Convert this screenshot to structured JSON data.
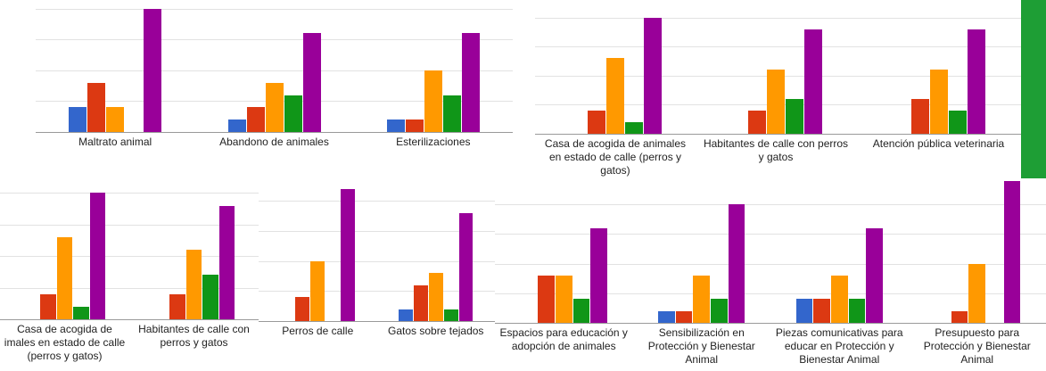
{
  "chart_data": [
    {
      "type": "bar",
      "categories": [
        "Maltrato animal",
        "Abandono de animales",
        "Esterilizaciones"
      ],
      "series": [
        {
          "color": "#3366cc",
          "values": [
            2,
            1,
            1
          ]
        },
        {
          "color": "#dc3912",
          "values": [
            4,
            2,
            1
          ]
        },
        {
          "color": "#ff9900",
          "values": [
            2,
            4,
            5
          ]
        },
        {
          "color": "#109618",
          "values": [
            0,
            3,
            3
          ]
        },
        {
          "color": "#990099",
          "values": [
            10,
            8,
            8
          ]
        }
      ],
      "ylim": [
        0,
        10.7
      ],
      "yticks": [
        0,
        2.5,
        5,
        7.5,
        10
      ],
      "grid": true
    },
    {
      "type": "bar",
      "categories": [
        "Casa de acogida de animales en estado de calle (perros y gatos)",
        "Habitantes de calle con perros y gatos"
      ],
      "series": [
        {
          "color": "#3366cc",
          "values": [
            0,
            0
          ]
        },
        {
          "color": "#dc3912",
          "values": [
            2,
            2
          ]
        },
        {
          "color": "#ff9900",
          "values": [
            6.5,
            5.5
          ]
        },
        {
          "color": "#109618",
          "values": [
            1,
            3
          ]
        },
        {
          "color": "#990099",
          "values": [
            10,
            9
          ]
        }
      ],
      "ylim": [
        0,
        11.5
      ],
      "yticks": [
        0,
        2.5,
        5,
        7.5,
        10
      ],
      "grid": true
    },
    {
      "type": "bar",
      "categories": [
        "Atención pública veterinaria"
      ],
      "series": [
        {
          "color": "#3366cc",
          "values": [
            0
          ]
        },
        {
          "color": "#dc3912",
          "values": [
            3
          ]
        },
        {
          "color": "#ff9900",
          "values": [
            5.5
          ]
        },
        {
          "color": "#109618",
          "values": [
            2
          ]
        },
        {
          "color": "#990099",
          "values": [
            9
          ]
        }
      ],
      "ylim": [
        0,
        11.5
      ],
      "yticks": [
        0,
        2.5,
        5,
        7.5,
        10
      ],
      "grid": true
    },
    {
      "type": "bar",
      "categories": [
        "Casa de acogida de imales en estado de calle (perros y gatos)",
        "Habitantes de calle con perros y gatos"
      ],
      "series": [
        {
          "color": "#3366cc",
          "values": [
            0,
            0
          ]
        },
        {
          "color": "#dc3912",
          "values": [
            2,
            2
          ]
        },
        {
          "color": "#ff9900",
          "values": [
            6.5,
            5.5
          ]
        },
        {
          "color": "#109618",
          "values": [
            1,
            3.5
          ]
        },
        {
          "color": "#990099",
          "values": [
            10,
            9
          ]
        }
      ],
      "ylim": [
        0,
        10.8
      ],
      "yticks": [
        0,
        2.5,
        5,
        7.5,
        10
      ],
      "grid": true
    },
    {
      "type": "bar",
      "categories": [
        "Perros de calle",
        "Gatos sobre tejados"
      ],
      "series": [
        {
          "color": "#3366cc",
          "values": [
            0,
            1
          ]
        },
        {
          "color": "#dc3912",
          "values": [
            2,
            3
          ]
        },
        {
          "color": "#ff9900",
          "values": [
            5,
            4
          ]
        },
        {
          "color": "#109618",
          "values": [
            0,
            1
          ]
        },
        {
          "color": "#990099",
          "values": [
            11,
            9
          ]
        }
      ],
      "ylim": [
        0,
        11.5
      ],
      "yticks": [
        0,
        2.5,
        5,
        7.5,
        10
      ],
      "grid": true
    },
    {
      "type": "bar",
      "categories": [
        "Espacios para educación y adopción de animales",
        "Sensibilización en Protección y Bienestar Animal",
        "Piezas comunicativas para educar en Protección y Bienestar Animal",
        "Presupuesto para Protección y Bienestar Animal"
      ],
      "series": [
        {
          "color": "#3366cc",
          "values": [
            0,
            1,
            2,
            0
          ]
        },
        {
          "color": "#dc3912",
          "values": [
            4,
            1,
            2,
            1
          ]
        },
        {
          "color": "#ff9900",
          "values": [
            4,
            4,
            4,
            5
          ]
        },
        {
          "color": "#109618",
          "values": [
            2,
            2,
            2,
            0
          ]
        },
        {
          "color": "#990099",
          "values": [
            8,
            10,
            8,
            12
          ]
        }
      ],
      "ylim": [
        0,
        12.2
      ],
      "yticks": [
        0,
        2.5,
        5,
        7.5,
        10
      ],
      "grid": true
    }
  ]
}
